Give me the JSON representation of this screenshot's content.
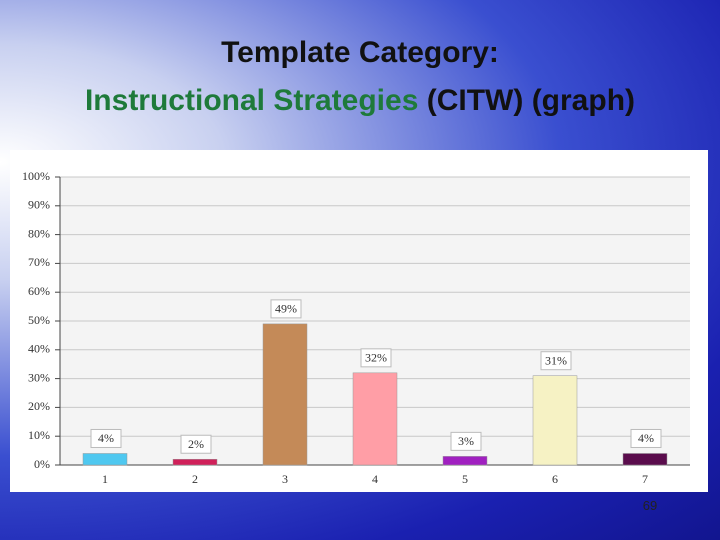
{
  "slide": {
    "title_line1": "Template Category:",
    "title_line2_green": "Instructional Strategies",
    "title_line2_rest": "(CITW) (graph)",
    "page_number": "69"
  },
  "chart_data": {
    "type": "bar",
    "categories": [
      "1",
      "2",
      "3",
      "4",
      "5",
      "6",
      "7"
    ],
    "values": [
      4,
      2,
      49,
      32,
      3,
      31,
      4
    ],
    "value_labels": [
      "4%",
      "2%",
      "49%",
      "32%",
      "3%",
      "31%",
      "4%"
    ],
    "colors": [
      "#4fc8f0",
      "#d0205a",
      "#c48a58",
      "#ff9ea6",
      "#a020c0",
      "#f6f2c4",
      "#5a0c4c"
    ],
    "ylim": [
      0,
      100
    ],
    "yticks": [
      {
        "value": 0,
        "label": "0%"
      },
      {
        "value": 10,
        "label": "10%"
      },
      {
        "value": 20,
        "label": "20%"
      },
      {
        "value": 30,
        "label": "30%"
      },
      {
        "value": 40,
        "label": "40%"
      },
      {
        "value": 50,
        "label": "50%"
      },
      {
        "value": 60,
        "label": "60%"
      },
      {
        "value": 70,
        "label": "70%"
      },
      {
        "value": 80,
        "label": "80%"
      },
      {
        "value": 90,
        "label": "90%"
      },
      {
        "value": 100,
        "label": "100%"
      }
    ],
    "grid": true
  }
}
